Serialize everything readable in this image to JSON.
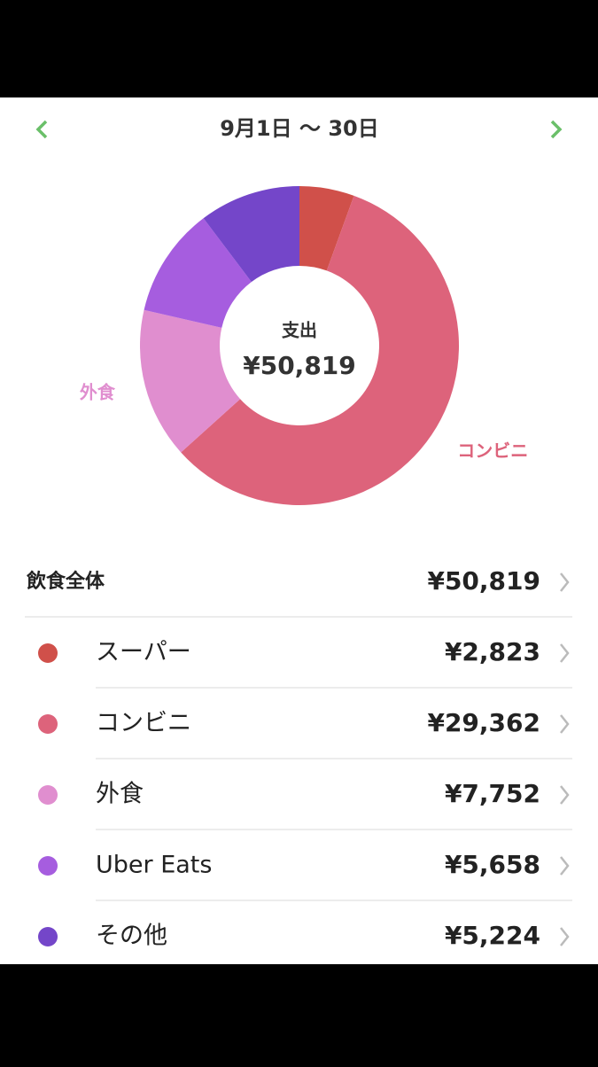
{
  "header": {
    "title": "9月1日 〜 30日"
  },
  "chart_data": {
    "type": "pie",
    "categories": [
      "スーパー",
      "コンビニ",
      "外食",
      "Uber Eats",
      "その他"
    ],
    "values": [
      2823,
      29362,
      7752,
      5658,
      5224
    ],
    "value_labels": [
      "¥2,823",
      "¥29,362",
      "¥7,752",
      "¥5,658",
      "¥5,224"
    ],
    "colors": [
      "#d0504a",
      "#dd637b",
      "#e08ecf",
      "#a65ddf",
      "#7446c9"
    ],
    "center_label": "支出",
    "total_label": "¥50,819"
  },
  "list": {
    "title": "飲食全体"
  }
}
